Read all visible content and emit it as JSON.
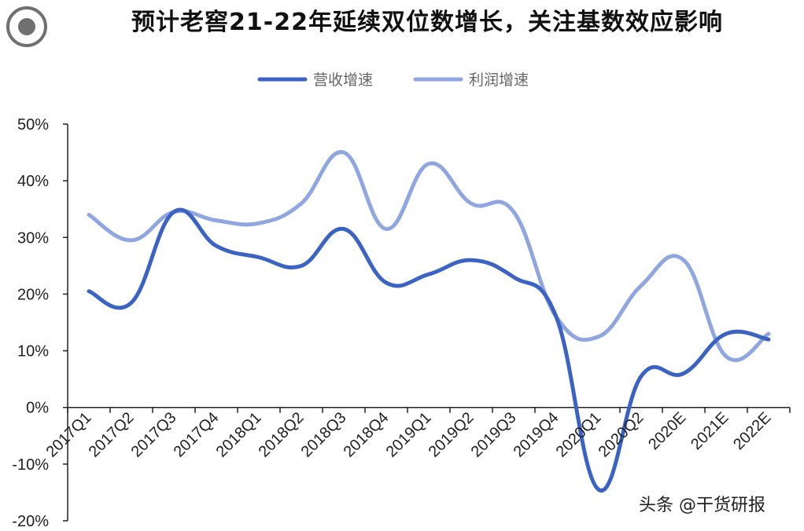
{
  "header": {
    "title": "预计老窖21-22年延续双位数增长，关注基数效应影响"
  },
  "watermark": "头条 @干货研报",
  "colors": {
    "revenue": "#3a63c4",
    "profit": "#8fa6e0",
    "axis": "#222222",
    "background": "#ffffff"
  },
  "chart_data": {
    "type": "line",
    "title": "预计老窖21-22年延续双位数增长，关注基数效应影响",
    "xlabel": "",
    "ylabel": "",
    "ylim": [
      -0.2,
      0.5
    ],
    "yticks": [
      "50%",
      "40%",
      "30%",
      "20%",
      "10%",
      "0%",
      "-10%",
      "-20%"
    ],
    "ytick_values": [
      0.5,
      0.4,
      0.3,
      0.2,
      0.1,
      0,
      -0.1,
      -0.2
    ],
    "grid": false,
    "legend_position": "top-center",
    "categories": [
      "2017Q1",
      "2017Q2",
      "2017Q3",
      "2017Q4",
      "2018Q1",
      "2018Q2",
      "2018Q3",
      "2018Q4",
      "2019Q1",
      "2019Q2",
      "2019Q3",
      "2019Q4",
      "2020Q1",
      "2020Q2",
      "2020E",
      "2021E",
      "2022E"
    ],
    "series": [
      {
        "name": "营收增速",
        "color": "#3a63c4",
        "values": [
          0.205,
          0.185,
          0.345,
          0.285,
          0.265,
          0.25,
          0.315,
          0.22,
          0.235,
          0.26,
          0.23,
          0.16,
          -0.145,
          0.055,
          0.06,
          0.13,
          0.12
        ]
      },
      {
        "name": "利润增速",
        "color": "#8fa6e0",
        "values": [
          0.34,
          0.295,
          0.345,
          0.33,
          0.325,
          0.36,
          0.45,
          0.315,
          0.43,
          0.36,
          0.345,
          0.16,
          0.125,
          0.215,
          0.26,
          0.09,
          0.13
        ]
      }
    ]
  }
}
